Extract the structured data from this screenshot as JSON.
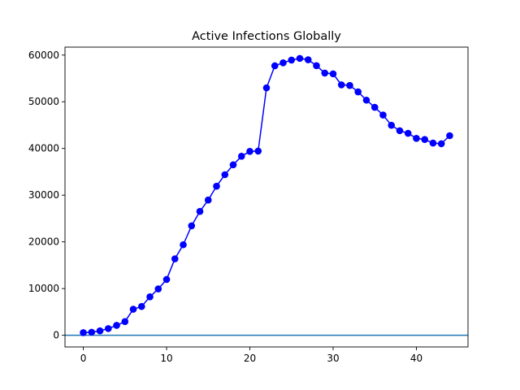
{
  "chart_data": {
    "type": "line",
    "title": "Active Infections Globally",
    "xlabel": "",
    "ylabel": "",
    "xlim": [
      -2.2,
      46.2
    ],
    "ylim": [
      -2500,
      61700
    ],
    "xticks": [
      0,
      10,
      20,
      30,
      40
    ],
    "yticks": [
      0,
      10000,
      20000,
      30000,
      40000,
      50000,
      60000
    ],
    "grid": false,
    "legend": "none",
    "series": [
      {
        "color": "#0000ff",
        "marker": "circle",
        "x": [
          0,
          1,
          2,
          3,
          4,
          5,
          6,
          7,
          8,
          9,
          10,
          11,
          12,
          13,
          14,
          15,
          16,
          17,
          18,
          19,
          20,
          21,
          22,
          23,
          24,
          25,
          26,
          27,
          28,
          29,
          30,
          31,
          32,
          33,
          34,
          35,
          36,
          37,
          38,
          39,
          40,
          41,
          42,
          43,
          44
        ],
        "values": [
          555,
          654,
          941,
          1434,
          2118,
          2927,
          5578,
          6166,
          8235,
          9927,
          11950,
          16369,
          19381,
          23435,
          26520,
          28957,
          31919,
          34386,
          36497,
          38329,
          39375,
          39442,
          52977,
          57702,
          58340,
          58929,
          59287,
          58999,
          57725,
          56145,
          55979,
          53622,
          53497,
          52115,
          50349,
          48813,
          47160,
          44967,
          43803,
          43247,
          42165,
          41924,
          41152,
          41015,
          42737
        ]
      }
    ],
    "reference_lines": [
      {
        "orientation": "horizontal",
        "y": 0,
        "color": "#1f77b4"
      }
    ]
  }
}
